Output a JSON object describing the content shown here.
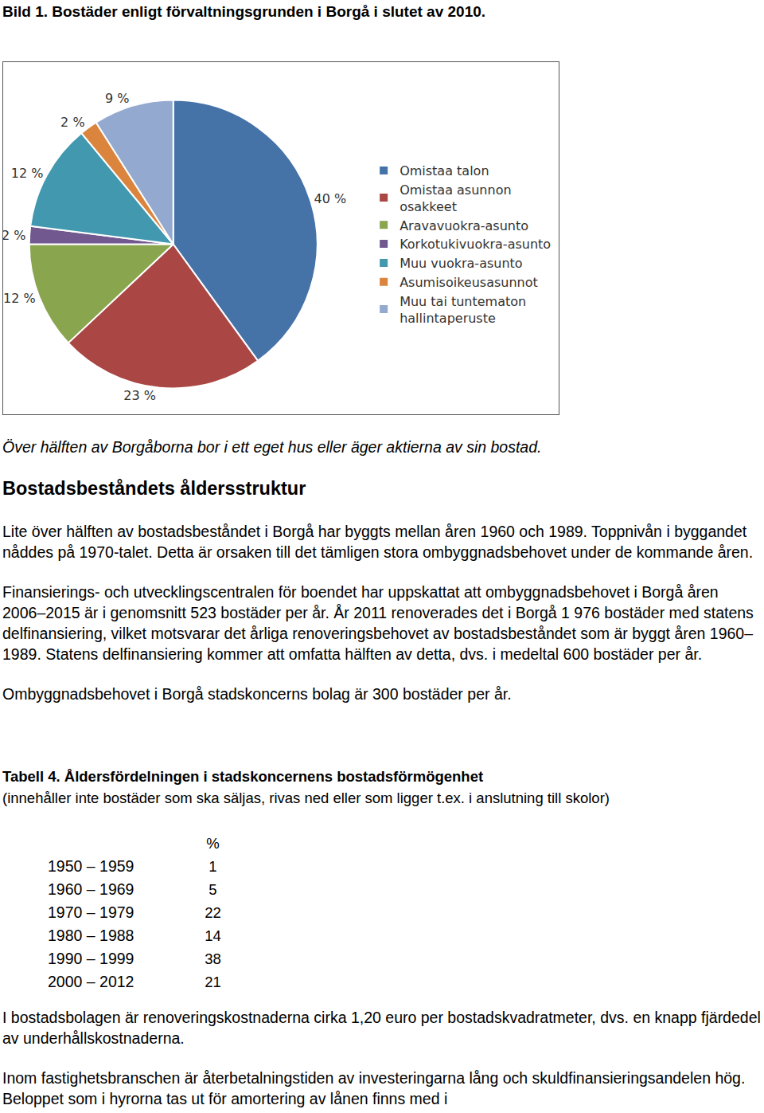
{
  "caption": "Bild 1. Bostäder enligt förvaltningsgrunden i Borgå i slutet av 2010.",
  "chart_data": {
    "type": "pie",
    "categories": [
      "Omistaa talon",
      "Omistaa asunnon osakkeet",
      "Aravavuokra-asunto",
      "Korkotukivuokra-asunto",
      "Muu vuokra-asunto",
      "Asumisoikeusasunnot",
      "Muu tai tuntematon hallintaperuste"
    ],
    "values": [
      40,
      23,
      12,
      2,
      12,
      2,
      9
    ],
    "value_labels": [
      "40 %",
      "23 %",
      "12 %",
      "2 %",
      "12 %",
      "2 %",
      "9 %"
    ],
    "colors": [
      "#4572a7",
      "#aa4643",
      "#89a54e",
      "#71588f",
      "#4198af",
      "#db843d",
      "#93a9cf"
    ],
    "data_labels": true,
    "legend": "right"
  },
  "chart_caption": "Över hälften av Borgåborna bor i ett eget hus eller äger aktierna av sin bostad.",
  "section": {
    "heading": "Bostadsbeståndets åldersstruktur",
    "paragraphs": [
      "Lite över hälften av bostadsbeståndet i Borgå har byggts mellan åren 1960 och 1989. Toppnivån i byggandet nåddes på 1970-talet. Detta är orsaken till det tämligen stora ombyggnadsbehovet under de kommande åren.",
      "Finansierings- och utvecklingscentralen för boendet  har uppskattat att ombyggnadsbehovet i Borgå åren 2006–2015 är i genomsnitt 523 bostäder per år. År 2011 renoverades det i Borgå 1 976 bostäder med statens delfinansiering, vilket motsvarar det årliga renoveringsbehovet av bostadsbeståndet som är byggt åren 1960–1989. Statens delfinansiering kommer att omfatta hälften av detta, dvs. i medeltal 600 bostäder per år.",
      "Ombyggnadsbehovet i Borgå stadskoncerns bolag är 300 bostäder per år."
    ]
  },
  "table": {
    "title": "Tabell 4. Åldersfördelningen i stadskoncernens bostadsförmögenhet",
    "subtitle": "(innehåller inte bostäder som ska säljas, rivas ned eller som ligger t.ex. i anslutning till skolor)",
    "header": "%",
    "rows": [
      [
        "1950 – 1959",
        1
      ],
      [
        "1960 – 1969",
        5
      ],
      [
        "1970 – 1979",
        22
      ],
      [
        "1980 – 1988",
        14
      ],
      [
        "1990 – 1999",
        38
      ],
      [
        "2000 – 2012",
        21
      ]
    ]
  },
  "closing_paragraphs": [
    "I bostadsbolagen är renoveringskostnaderna cirka 1,20 euro per bostadskvadratmeter, dvs. en knapp fjärdedel av underhållskostnaderna.",
    "Inom fastighetsbranschen är återbetalningstiden av investeringarna lång och skuldfinansieringsandelen hög. Beloppet som i hyrorna tas ut för amortering av lånen finns med i"
  ]
}
